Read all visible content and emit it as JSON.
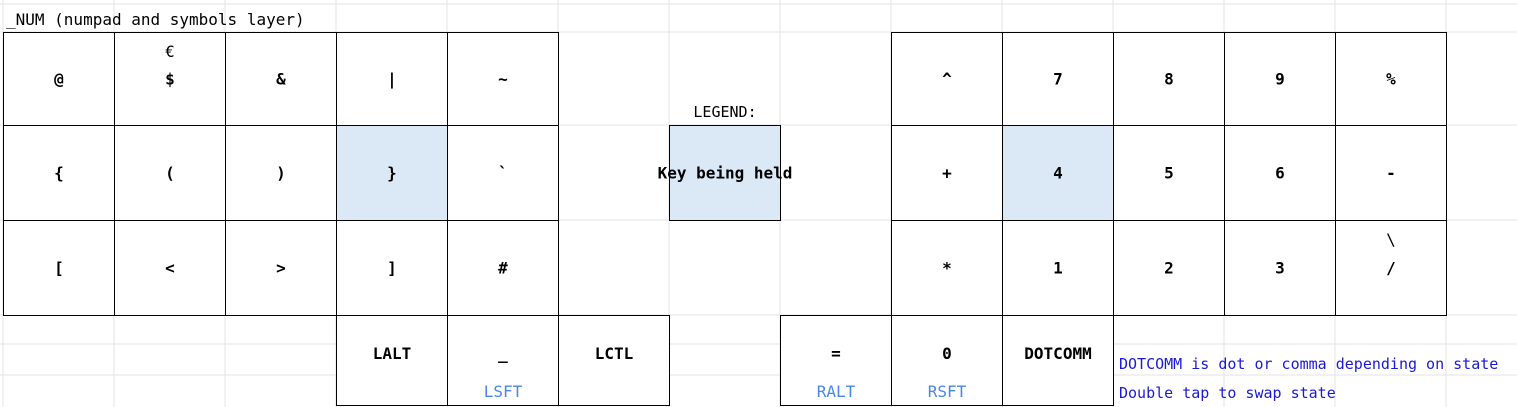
{
  "title": "_NUM (numpad and symbols layer)",
  "colors": {
    "held_key": "#dbe8f6",
    "hold_label": "#4a86e8",
    "note_text": "#1a1ad6",
    "grid_line": "#e3e3e3"
  },
  "left_hand": {
    "row1": [
      {
        "main": "@"
      },
      {
        "main": "$",
        "top": "€"
      },
      {
        "main": "&"
      },
      {
        "main": "|"
      },
      {
        "main": "~"
      }
    ],
    "row2": [
      {
        "main": "{"
      },
      {
        "main": "("
      },
      {
        "main": ")"
      },
      {
        "main": "}",
        "held": true
      },
      {
        "main": "`"
      }
    ],
    "row3": [
      {
        "main": "["
      },
      {
        "main": "<"
      },
      {
        "main": ">"
      },
      {
        "main": "]"
      },
      {
        "main": "#"
      }
    ]
  },
  "right_hand": {
    "row1": [
      {
        "main": "^"
      },
      {
        "main": "7"
      },
      {
        "main": "8"
      },
      {
        "main": "9"
      },
      {
        "main": "%"
      }
    ],
    "row2": [
      {
        "main": "+"
      },
      {
        "main": "4",
        "held": true
      },
      {
        "main": "5"
      },
      {
        "main": "6"
      },
      {
        "main": "-"
      }
    ],
    "row3": [
      {
        "main": "*"
      },
      {
        "main": "1"
      },
      {
        "main": "2"
      },
      {
        "main": "3"
      },
      {
        "main": "/",
        "top": "\\"
      }
    ]
  },
  "left_thumbs": [
    {
      "main": "LALT",
      "hold": ""
    },
    {
      "main": "_",
      "hold": "LSFT"
    },
    {
      "main": "LCTL",
      "hold": ""
    }
  ],
  "right_thumbs": [
    {
      "main": "=",
      "hold": "RALT"
    },
    {
      "main": "0",
      "hold": "RSFT"
    },
    {
      "main": "DOTCOMM",
      "hold": ""
    }
  ],
  "legend": {
    "title": "LEGEND:",
    "held_label": "Key being held"
  },
  "notes": [
    "DOTCOMM is dot or comma depending on state",
    "Double tap to swap state"
  ]
}
